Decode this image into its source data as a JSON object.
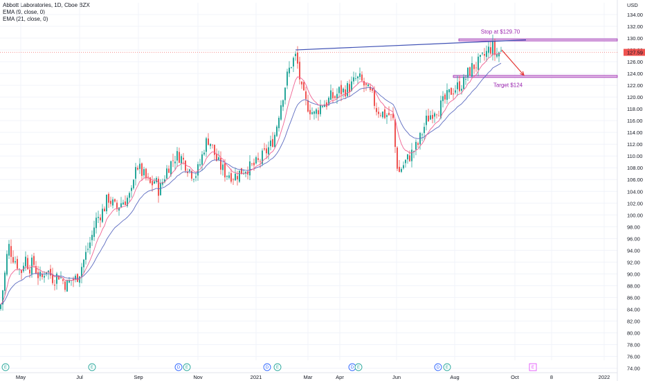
{
  "header": {
    "symbol_line": "Abbott Laboratories, 1D, Cboe BZX",
    "ema9_label": "EMA (9, close, 0)",
    "ema21_label": "EMA (21, close, 0)"
  },
  "colors": {
    "up": "#26a69a",
    "down": "#ef5350",
    "ema9": "#f06292",
    "ema21": "#5c6bc0",
    "trendline": "#3f51b5",
    "zone_fill": "#e1bee7",
    "zone_stroke": "#9c27b0",
    "arrow": "#e53935",
    "annotation_text": "#9c27b0",
    "price_badge": "#ef5350",
    "event_green": "#26a69a",
    "event_blue": "#2962ff",
    "event_pink": "#e040fb"
  },
  "chart_data": {
    "type": "candlestick",
    "y_axis": {
      "currency": "USD",
      "min": 74,
      "max": 135,
      "ticks": [
        "134.00",
        "132.00",
        "130.00",
        "128.00",
        "126.00",
        "124.00",
        "122.00",
        "120.00",
        "118.00",
        "116.00",
        "114.00",
        "112.00",
        "110.00",
        "108.00",
        "106.00",
        "104.00",
        "102.00",
        "100.00",
        "98.00",
        "96.00",
        "94.00",
        "92.00",
        "90.00",
        "88.00",
        "86.00",
        "84.00",
        "82.00",
        "80.00",
        "78.00",
        "76.00",
        "74.00"
      ]
    },
    "x_axis": {
      "ticks": [
        {
          "label": "May",
          "x": 30
        },
        {
          "label": "Jul",
          "x": 115
        },
        {
          "label": "Sep",
          "x": 200
        },
        {
          "label": "Nov",
          "x": 286
        },
        {
          "label": "2021",
          "x": 370
        },
        {
          "label": "Mar",
          "x": 445
        },
        {
          "label": "Apr",
          "x": 491
        },
        {
          "label": "Jun",
          "x": 573
        },
        {
          "label": "Aug",
          "x": 657
        },
        {
          "label": "Oct",
          "x": 744
        },
        {
          "label": "8",
          "x": 797
        },
        {
          "label": "2022",
          "x": 873
        }
      ]
    },
    "last_price": {
      "label": "127.59",
      "value": 127.59
    },
    "close_path": [
      [
        0,
        84
      ],
      [
        6,
        89
      ],
      [
        12,
        95
      ],
      [
        18,
        93
      ],
      [
        24,
        92
      ],
      [
        30,
        90
      ],
      [
        36,
        93
      ],
      [
        42,
        91
      ],
      [
        48,
        92
      ],
      [
        54,
        90
      ],
      [
        60,
        89
      ],
      [
        66,
        91
      ],
      [
        72,
        90
      ],
      [
        78,
        89
      ],
      [
        84,
        90
      ],
      [
        90,
        89
      ],
      [
        96,
        88
      ],
      [
        102,
        89
      ],
      [
        108,
        89
      ],
      [
        114,
        90
      ],
      [
        120,
        92
      ],
      [
        126,
        94
      ],
      [
        132,
        96
      ],
      [
        138,
        99
      ],
      [
        144,
        100
      ],
      [
        150,
        101
      ],
      [
        156,
        103
      ],
      [
        162,
        102
      ],
      [
        168,
        101
      ],
      [
        174,
        102
      ],
      [
        180,
        102.5
      ],
      [
        186,
        103
      ],
      [
        192,
        104
      ],
      [
        196,
        109
      ],
      [
        200,
        108
      ],
      [
        206,
        107
      ],
      [
        212,
        106
      ],
      [
        218,
        105
      ],
      [
        224,
        106
      ],
      [
        230,
        104
      ],
      [
        236,
        106
      ],
      [
        242,
        108
      ],
      [
        248,
        109
      ],
      [
        254,
        110
      ],
      [
        260,
        110
      ],
      [
        266,
        109
      ],
      [
        272,
        108
      ],
      [
        278,
        107
      ],
      [
        284,
        107
      ],
      [
        290,
        109
      ],
      [
        296,
        112
      ],
      [
        302,
        113
      ],
      [
        308,
        111
      ],
      [
        314,
        109
      ],
      [
        320,
        108
      ],
      [
        326,
        107
      ],
      [
        332,
        107
      ],
      [
        338,
        106.5
      ],
      [
        344,
        107
      ],
      [
        350,
        107.5
      ],
      [
        356,
        108
      ],
      [
        362,
        108
      ],
      [
        368,
        108.5
      ],
      [
        374,
        109
      ],
      [
        380,
        110
      ],
      [
        386,
        111
      ],
      [
        392,
        112
      ],
      [
        398,
        114
      ],
      [
        404,
        118
      ],
      [
        410,
        121
      ],
      [
        416,
        124
      ],
      [
        422,
        126
      ],
      [
        428,
        127
      ],
      [
        432,
        124
      ],
      [
        436,
        121
      ],
      [
        442,
        119
      ],
      [
        448,
        118
      ],
      [
        454,
        117
      ],
      [
        460,
        118
      ],
      [
        466,
        119
      ],
      [
        472,
        119
      ],
      [
        478,
        120
      ],
      [
        484,
        120
      ],
      [
        490,
        121
      ],
      [
        496,
        121
      ],
      [
        502,
        121.5
      ],
      [
        508,
        122
      ],
      [
        514,
        123
      ],
      [
        520,
        123
      ],
      [
        526,
        122
      ],
      [
        532,
        121
      ],
      [
        538,
        120
      ],
      [
        544,
        118
      ],
      [
        550,
        117.5
      ],
      [
        556,
        117
      ],
      [
        562,
        117
      ],
      [
        568,
        116
      ],
      [
        572,
        110
      ],
      [
        576,
        107
      ],
      [
        580,
        108
      ],
      [
        586,
        109
      ],
      [
        592,
        110
      ],
      [
        598,
        111
      ],
      [
        604,
        112
      ],
      [
        610,
        114
      ],
      [
        616,
        116
      ],
      [
        622,
        117
      ],
      [
        628,
        118
      ],
      [
        634,
        118
      ],
      [
        640,
        119
      ],
      [
        646,
        120
      ],
      [
        652,
        121
      ],
      [
        658,
        121.5
      ],
      [
        664,
        122
      ],
      [
        670,
        122.5
      ],
      [
        676,
        124
      ],
      [
        682,
        125
      ],
      [
        688,
        125.5
      ],
      [
        694,
        126
      ],
      [
        700,
        127
      ],
      [
        706,
        128
      ],
      [
        712,
        128.5
      ],
      [
        716,
        127
      ],
      [
        720,
        127.6
      ],
      [
        724,
        127.59
      ]
    ],
    "events": [
      {
        "label": "E",
        "x": 8,
        "kind": "green"
      },
      {
        "label": "E",
        "x": 133,
        "kind": "green"
      },
      {
        "label": "D",
        "x": 258,
        "kind": "blue"
      },
      {
        "label": "E",
        "x": 270,
        "kind": "green"
      },
      {
        "label": "D",
        "x": 386,
        "kind": "blue"
      },
      {
        "label": "E",
        "x": 401,
        "kind": "green"
      },
      {
        "label": "D",
        "x": 509,
        "kind": "blue"
      },
      {
        "label": "E",
        "x": 518,
        "kind": "green"
      },
      {
        "label": "D",
        "x": 633,
        "kind": "blue"
      },
      {
        "label": "E",
        "x": 646,
        "kind": "green"
      },
      {
        "label": "E",
        "x": 770,
        "kind": "pink"
      }
    ],
    "annotations": {
      "stop": {
        "label": "Stop at $129.70",
        "value": 129.7
      },
      "target": {
        "label": "Target $124",
        "value": 123.5
      },
      "trendline": {
        "from": [
          427,
          128
        ],
        "to": [
          760,
          129.7
        ]
      },
      "arrow": {
        "from": [
          725,
          128
        ],
        "to": [
          757,
          123.7
        ]
      }
    }
  }
}
